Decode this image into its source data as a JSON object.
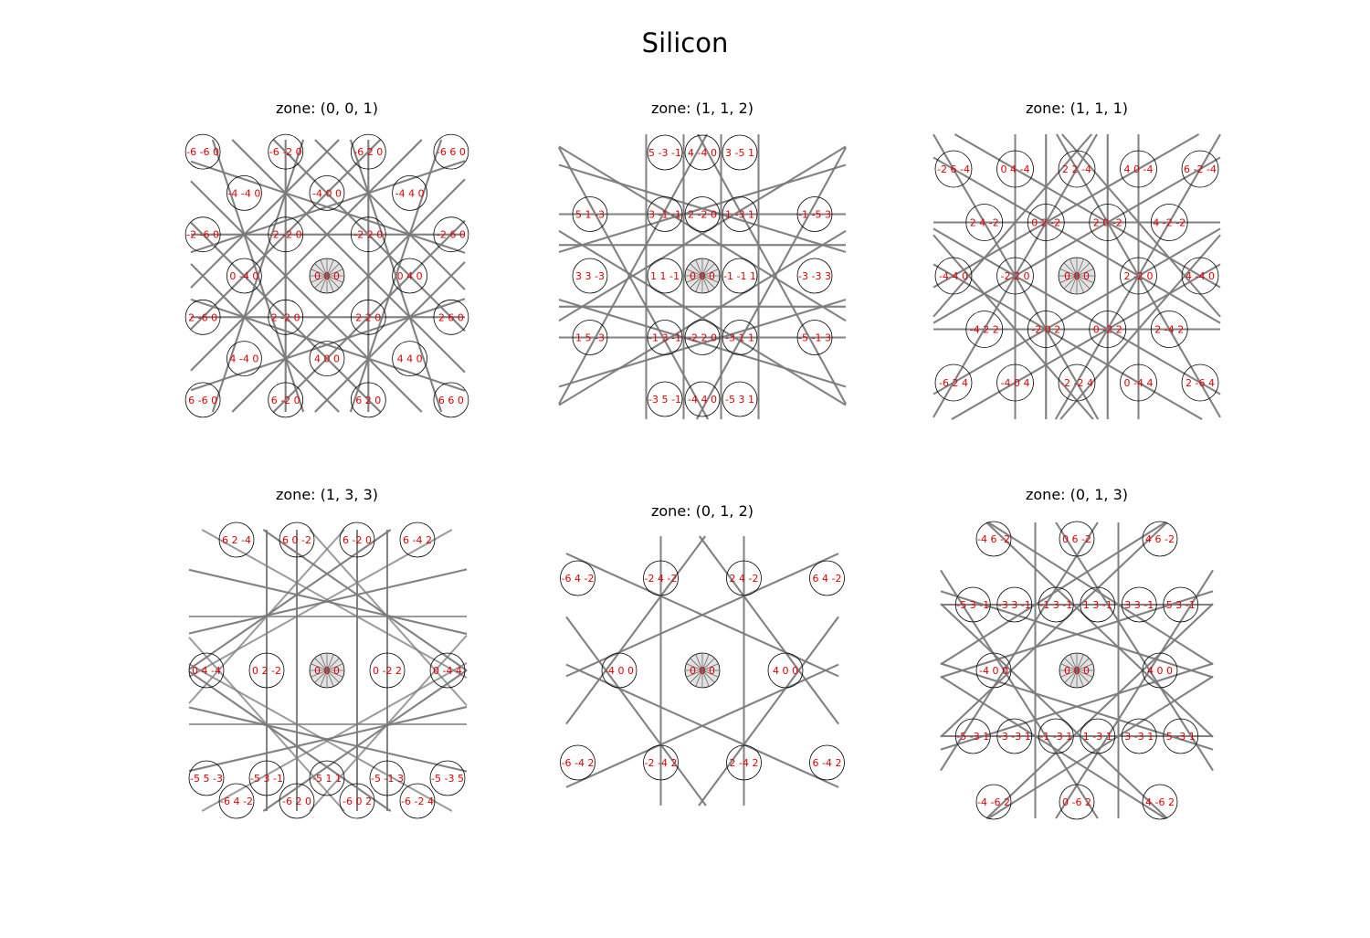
{
  "figure": {
    "title": "Silicon"
  },
  "colors": {
    "label": "#dd0000",
    "kikuchi_line": "#7a7a7a",
    "disk": "#000000"
  },
  "chart_data": [
    {
      "type": "scatter",
      "title": "zone: (0, 0, 1)",
      "spots": [
        {
          "x": -3,
          "y": 3,
          "label": "-6 -6 0"
        },
        {
          "x": -1,
          "y": 3,
          "label": "-6 -2 0"
        },
        {
          "x": 1,
          "y": 3,
          "label": "-6 2 0"
        },
        {
          "x": 3,
          "y": 3,
          "label": "-6 6 0"
        },
        {
          "x": -2,
          "y": 2,
          "label": "-4 -4 0"
        },
        {
          "x": 0,
          "y": 2,
          "label": "-4 0 0"
        },
        {
          "x": 2,
          "y": 2,
          "label": "-4 4 0"
        },
        {
          "x": -3,
          "y": 1,
          "label": "-2 -6 0"
        },
        {
          "x": -1,
          "y": 1,
          "label": "-2 -2 0"
        },
        {
          "x": 1,
          "y": 1,
          "label": "-2 2 0"
        },
        {
          "x": 3,
          "y": 1,
          "label": "-2 6 0"
        },
        {
          "x": -2,
          "y": 0,
          "label": "0 -4 0"
        },
        {
          "x": 0,
          "y": 0,
          "label": "0 0 0"
        },
        {
          "x": 2,
          "y": 0,
          "label": "0 4 0"
        },
        {
          "x": -3,
          "y": -1,
          "label": "2 -6 0"
        },
        {
          "x": -1,
          "y": -1,
          "label": "2 -2 0"
        },
        {
          "x": 1,
          "y": -1,
          "label": "2 2 0"
        },
        {
          "x": 3,
          "y": -1,
          "label": "2 6 0"
        },
        {
          "x": -2,
          "y": -2,
          "label": "4 -4 0"
        },
        {
          "x": 0,
          "y": -2,
          "label": "4 0 0"
        },
        {
          "x": 2,
          "y": -2,
          "label": "4 4 0"
        },
        {
          "x": -3,
          "y": -3,
          "label": "6 -6 0"
        },
        {
          "x": -1,
          "y": -3,
          "label": "6 -2 0"
        },
        {
          "x": 1,
          "y": -3,
          "label": "6 2 0"
        },
        {
          "x": 3,
          "y": -3,
          "label": "6 6 0"
        }
      ]
    },
    {
      "type": "scatter",
      "title": "zone: (1, 1, 2)",
      "spots": [
        {
          "x": -1.01,
          "y": 3,
          "label": "5 -3 -1"
        },
        {
          "x": 0,
          "y": 3,
          "label": "4 -4 0"
        },
        {
          "x": 1.01,
          "y": 3,
          "label": "3 -5 1"
        },
        {
          "x": -3.03,
          "y": 1.5,
          "label": "5 1 -3"
        },
        {
          "x": -1.01,
          "y": 1.5,
          "label": "3 -1 -1"
        },
        {
          "x": 0,
          "y": 1.5,
          "label": "2 -2 0"
        },
        {
          "x": 1.01,
          "y": 1.5,
          "label": "1 -3 1"
        },
        {
          "x": 3.03,
          "y": 1.5,
          "label": "-1 -5 3"
        },
        {
          "x": -3.03,
          "y": 0,
          "label": "3 3 -3"
        },
        {
          "x": -1.01,
          "y": 0,
          "label": "1 1 -1"
        },
        {
          "x": 0,
          "y": 0,
          "label": "0 0 0"
        },
        {
          "x": 1.01,
          "y": 0,
          "label": "-1 -1 1"
        },
        {
          "x": 3.03,
          "y": 0,
          "label": "-3 -3 3"
        },
        {
          "x": -3.03,
          "y": -1.5,
          "label": "1 5 -3"
        },
        {
          "x": -1.01,
          "y": -1.5,
          "label": "-1 3 -1"
        },
        {
          "x": 0,
          "y": -1.5,
          "label": "-2 2 0"
        },
        {
          "x": 1.01,
          "y": -1.5,
          "label": "-3 1 1"
        },
        {
          "x": 3.03,
          "y": -1.5,
          "label": "-5 -1 3"
        },
        {
          "x": -1.01,
          "y": -3,
          "label": "-3 5 -1"
        },
        {
          "x": 0,
          "y": -3,
          "label": "-4 4 0"
        },
        {
          "x": 1.01,
          "y": -3,
          "label": "-5 3 1"
        }
      ]
    },
    {
      "type": "scatter",
      "title": "zone: (1, 1, 1)",
      "spots": [
        {
          "x": -2,
          "y": 2,
          "label": "-2 6 -4"
        },
        {
          "x": -1,
          "y": 2,
          "label": "0 4 -4"
        },
        {
          "x": 0,
          "y": 2,
          "label": "2 2 -4"
        },
        {
          "x": 1,
          "y": 2,
          "label": "4 0 -4"
        },
        {
          "x": 2,
          "y": 2,
          "label": "6 -2 -4"
        },
        {
          "x": -1.5,
          "y": 1,
          "label": "2 4 -2"
        },
        {
          "x": -0.5,
          "y": 1,
          "label": "0 2 -2"
        },
        {
          "x": 0.5,
          "y": 1,
          "label": "2 0 -2"
        },
        {
          "x": 1.5,
          "y": 1,
          "label": "4 -2 -2"
        },
        {
          "x": -2,
          "y": 0,
          "label": "-4 4 0"
        },
        {
          "x": -1,
          "y": 0,
          "label": "-2 2 0"
        },
        {
          "x": 0,
          "y": 0,
          "label": "0 0 0"
        },
        {
          "x": 1,
          "y": 0,
          "label": "2 -2 0"
        },
        {
          "x": 2,
          "y": 0,
          "label": "4 -4 0"
        },
        {
          "x": -1.5,
          "y": -1,
          "label": "-4 2 2"
        },
        {
          "x": -0.5,
          "y": -1,
          "label": "-2 0 2"
        },
        {
          "x": 0.5,
          "y": -1,
          "label": "0 -2 2"
        },
        {
          "x": 1.5,
          "y": -1,
          "label": "2 -4 2"
        },
        {
          "x": -2,
          "y": -2,
          "label": "-6 2 4"
        },
        {
          "x": -1,
          "y": -2,
          "label": "-4 0 4"
        },
        {
          "x": 0,
          "y": -2,
          "label": "-2 -2 4"
        },
        {
          "x": 1,
          "y": -2,
          "label": "0 -4 4"
        },
        {
          "x": 2,
          "y": -2,
          "label": "2 -6 4"
        }
      ]
    },
    {
      "type": "scatter",
      "title": "zone: (1, 3, 3)",
      "spots": [
        {
          "x": -1.5,
          "y": 2,
          "label": "6 2 -4"
        },
        {
          "x": -0.5,
          "y": 2,
          "label": "6 0 -2"
        },
        {
          "x": 0.5,
          "y": 2,
          "label": "6 -2 0"
        },
        {
          "x": 1.5,
          "y": 2,
          "label": "6 -4 2"
        },
        {
          "x": -2,
          "y": 0,
          "label": "0 4 -4"
        },
        {
          "x": -1,
          "y": 0,
          "label": "0 2 -2"
        },
        {
          "x": 0,
          "y": 0,
          "label": "0 0 0"
        },
        {
          "x": 1,
          "y": 0,
          "label": "0 -2 2"
        },
        {
          "x": 2,
          "y": 0,
          "label": "0 -4 4"
        },
        {
          "x": -2,
          "y": -1.65,
          "label": "-5 5 -3"
        },
        {
          "x": -1,
          "y": -1.65,
          "label": "-5 3 -1"
        },
        {
          "x": 0,
          "y": -1.65,
          "label": "-5 1 1"
        },
        {
          "x": 1,
          "y": -1.65,
          "label": "-5 -1 3"
        },
        {
          "x": 2,
          "y": -1.65,
          "label": "-5 -3 5"
        },
        {
          "x": -1.5,
          "y": -2,
          "label": "-6 4 -2"
        },
        {
          "x": -0.5,
          "y": -2,
          "label": "-6 2 0"
        },
        {
          "x": 0.5,
          "y": -2,
          "label": "-6 0 2"
        },
        {
          "x": 1.5,
          "y": -2,
          "label": "-6 -2 4"
        }
      ]
    },
    {
      "type": "scatter",
      "title": "zone: (0, 1, 2)",
      "spots": [
        {
          "x": -3,
          "y": 2,
          "label": "-6 4 -2"
        },
        {
          "x": -1,
          "y": 2,
          "label": "-2 4 -2"
        },
        {
          "x": 1,
          "y": 2,
          "label": "2 4 -2"
        },
        {
          "x": 3,
          "y": 2,
          "label": "6 4 -2"
        },
        {
          "x": -2,
          "y": 0,
          "label": "-4 0 0"
        },
        {
          "x": 0,
          "y": 0,
          "label": "0 0 0"
        },
        {
          "x": 2,
          "y": 0,
          "label": "4 0 0"
        },
        {
          "x": -3,
          "y": -2,
          "label": "-6 -4 2"
        },
        {
          "x": -1,
          "y": -2,
          "label": "-2 -4 2"
        },
        {
          "x": 1,
          "y": -2,
          "label": "2 -4 2"
        },
        {
          "x": 3,
          "y": -2,
          "label": "6 -4 2"
        }
      ]
    },
    {
      "type": "scatter",
      "title": "zone: (0, 1, 3)",
      "spots": [
        {
          "x": -2,
          "y": 3,
          "label": "-4 6 -2"
        },
        {
          "x": 0,
          "y": 3,
          "label": "0 6 -2"
        },
        {
          "x": 2,
          "y": 3,
          "label": "4 6 -2"
        },
        {
          "x": -2.5,
          "y": 1.5,
          "label": "-5 3 -1"
        },
        {
          "x": -1.5,
          "y": 1.5,
          "label": "-3 3 -1"
        },
        {
          "x": -0.5,
          "y": 1.5,
          "label": "-1 3 -1"
        },
        {
          "x": 0.5,
          "y": 1.5,
          "label": "1 3 -1"
        },
        {
          "x": 1.5,
          "y": 1.5,
          "label": "3 3 -1"
        },
        {
          "x": 2.5,
          "y": 1.5,
          "label": "5 3 -1"
        },
        {
          "x": -2,
          "y": 0,
          "label": "-4 0 0"
        },
        {
          "x": 0,
          "y": 0,
          "label": "0 0 0"
        },
        {
          "x": 2,
          "y": 0,
          "label": "4 0 0"
        },
        {
          "x": -2.5,
          "y": -1.5,
          "label": "-5 -3 1"
        },
        {
          "x": -1.5,
          "y": -1.5,
          "label": "-3 -3 1"
        },
        {
          "x": -0.5,
          "y": -1.5,
          "label": "-1 -3 1"
        },
        {
          "x": 0.5,
          "y": -1.5,
          "label": "1 -3 1"
        },
        {
          "x": 1.5,
          "y": -1.5,
          "label": "3 -3 1"
        },
        {
          "x": 2.5,
          "y": -1.5,
          "label": "5 -3 1"
        },
        {
          "x": -2,
          "y": -3,
          "label": "-4 -6 2"
        },
        {
          "x": 0,
          "y": -3,
          "label": "0 -6 2"
        },
        {
          "x": 2,
          "y": -3,
          "label": "4 -6 2"
        }
      ]
    }
  ]
}
